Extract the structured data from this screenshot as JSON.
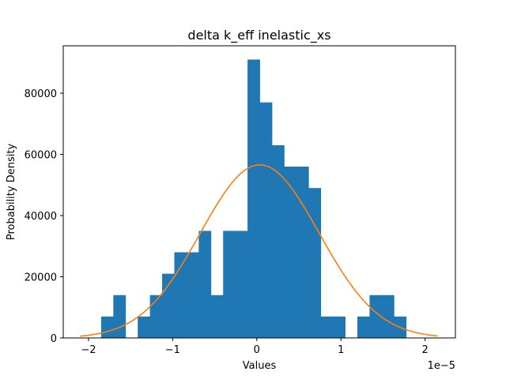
{
  "chart_data": {
    "type": "bar",
    "title": "delta k_eff inelastic_xs",
    "xlabel": "Values",
    "ylabel": "Probability Density",
    "x_offset_label": "1e−5",
    "xlim": [
      -2.3,
      2.36
    ],
    "ylim": [
      0,
      95500
    ],
    "xticks": [
      -2,
      -1,
      0,
      1,
      2
    ],
    "xtick_labels": [
      "−2",
      "−1",
      "0",
      "1",
      "2"
    ],
    "yticks": [
      0,
      20000,
      40000,
      60000,
      80000
    ],
    "ytick_labels": [
      "0",
      "20000",
      "40000",
      "60000",
      "80000"
    ],
    "grid": false,
    "colors": {
      "histogram": "#1f77b4",
      "pdf_curve": "#ff7f0e"
    },
    "histogram": {
      "bin_edges": [
        -1.85,
        -1.705,
        -1.56,
        -1.415,
        -1.27,
        -1.125,
        -0.98,
        -0.835,
        -0.69,
        -0.545,
        -0.4,
        -0.255,
        -0.11,
        0.035,
        0.18,
        0.325,
        0.47,
        0.615,
        0.76,
        0.905,
        1.05,
        1.195,
        1.34,
        1.485,
        1.63,
        1.775
      ],
      "densities": [
        7000,
        14000,
        0,
        7000,
        14000,
        21000,
        28000,
        28000,
        35000,
        14000,
        35000,
        35000,
        91000,
        77000,
        63000,
        56000,
        56000,
        49000,
        7000,
        7000,
        0,
        7000,
        14000,
        14000,
        7000
      ]
    },
    "pdf_curve": {
      "mean": 0.035,
      "std": 0.705,
      "x_range": [
        -2.1,
        2.15
      ]
    }
  }
}
